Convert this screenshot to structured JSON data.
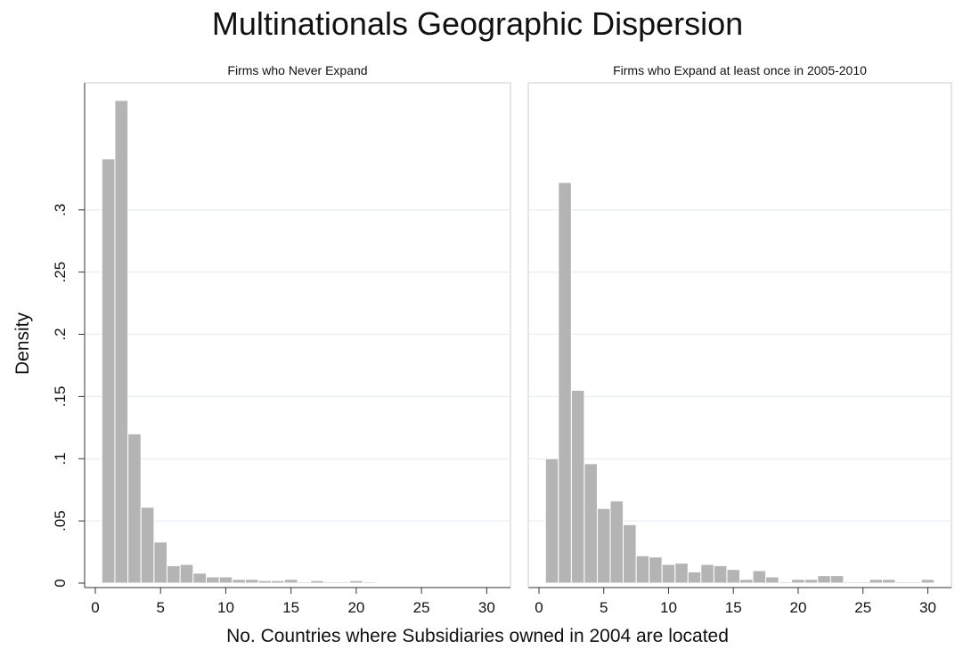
{
  "title": "Multinationals Geographic Dispersion",
  "xlabel": "No. Countries where Subsidiaries owned in 2004 are located",
  "ylabel": "Density",
  "colors": {
    "bar": "#b4b4b4",
    "bar_edge": "#ffffff",
    "grid": "#e8eef2",
    "axis": "#333333",
    "frame": "#cccccc"
  },
  "chart_data": [
    {
      "type": "bar",
      "title": "Firms who Never Expand",
      "xlabel": "No. Countries where Subsidiaries owned in 2004 are located",
      "ylabel": "Density",
      "ylim": [
        0,
        0.39
      ],
      "xlim": [
        0,
        31
      ],
      "bin_width": 1,
      "grid": true,
      "x_ticks": [
        0,
        5,
        10,
        15,
        20,
        25,
        30
      ],
      "x_tick_labels": [
        "0",
        "5",
        "10",
        "15",
        "20",
        "25",
        "30"
      ],
      "y_ticks": [
        0,
        0.05,
        0.1,
        0.15,
        0.2,
        0.25,
        0.3
      ],
      "y_tick_labels": [
        "0",
        ".05",
        ".1",
        ".15",
        ".2",
        ".25",
        ".3"
      ],
      "x": [
        1,
        2,
        3,
        4,
        5,
        6,
        7,
        8,
        9,
        10,
        11,
        12,
        13,
        14,
        15,
        16,
        17,
        18,
        19,
        20,
        21
      ],
      "values": [
        0.341,
        0.388,
        0.12,
        0.061,
        0.033,
        0.014,
        0.015,
        0.008,
        0.005,
        0.005,
        0.003,
        0.003,
        0.002,
        0.002,
        0.003,
        0.001,
        0.002,
        0.001,
        0.001,
        0.002,
        0.001
      ]
    },
    {
      "type": "bar",
      "title": "Firms who Expand at least once in 2005-2010",
      "xlabel": "No. Countries where Subsidiaries owned in 2004 are located",
      "ylabel": "Density",
      "ylim": [
        0,
        0.39
      ],
      "xlim": [
        0,
        31
      ],
      "bin_width": 1,
      "grid": true,
      "x_ticks": [
        0,
        5,
        10,
        15,
        20,
        25,
        30
      ],
      "x_tick_labels": [
        "0",
        "5",
        "10",
        "15",
        "20",
        "25",
        "30"
      ],
      "x": [
        1,
        2,
        3,
        4,
        5,
        6,
        7,
        8,
        9,
        10,
        11,
        12,
        13,
        14,
        15,
        16,
        17,
        18,
        19,
        20,
        21,
        22,
        23,
        24,
        25,
        26,
        27,
        28,
        29,
        30
      ],
      "values": [
        0.1,
        0.322,
        0.155,
        0.096,
        0.06,
        0.066,
        0.047,
        0.022,
        0.021,
        0.015,
        0.016,
        0.009,
        0.015,
        0.014,
        0.011,
        0.003,
        0.01,
        0.005,
        0.001,
        0.003,
        0.003,
        0.006,
        0.006,
        0.001,
        0.001,
        0.003,
        0.003,
        0.001,
        0.001,
        0.003
      ]
    }
  ]
}
